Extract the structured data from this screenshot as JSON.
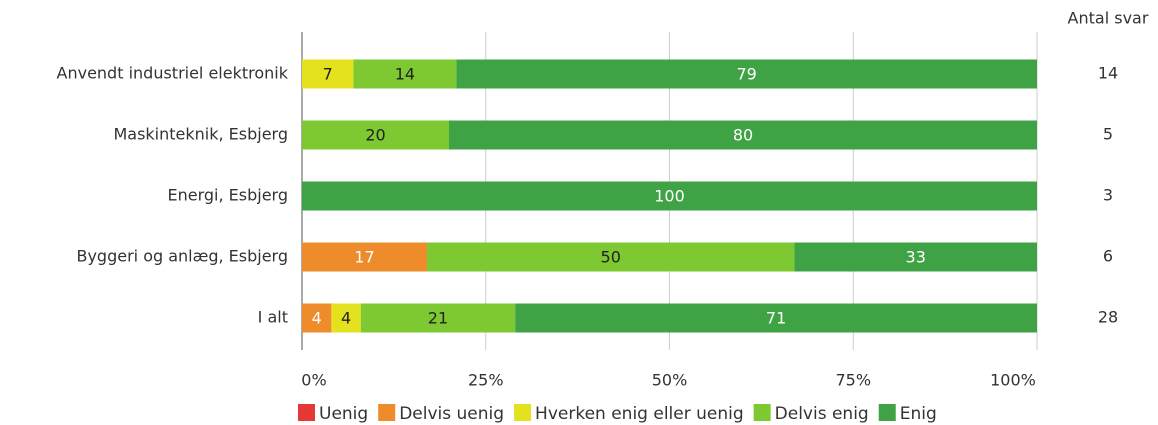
{
  "chart_data": {
    "type": "stacked-bar-horizontal",
    "categories": [
      "Anvendt industriel elektronik",
      "Maskinteknik, Esbjerg",
      "Energi, Esbjerg",
      "Byggeri og anlæg, Esbjerg",
      "I alt"
    ],
    "series": [
      {
        "name": "Uenig",
        "color": "#e53935",
        "label_color": "#ffffff",
        "values": [
          0,
          0,
          0,
          0,
          0
        ]
      },
      {
        "name": "Delvis uenig",
        "color": "#ee8b2a",
        "label_color": "#ffffff",
        "values": [
          0,
          0,
          0,
          17,
          4
        ]
      },
      {
        "name": "Hverken enig eller uenig",
        "color": "#e4e21f",
        "label_color": "#222222",
        "values": [
          7,
          0,
          0,
          0,
          4
        ]
      },
      {
        "name": "Delvis enig",
        "color": "#7ec832",
        "label_color": "#222222",
        "values": [
          14,
          20,
          0,
          50,
          21
        ]
      },
      {
        "name": "Enig",
        "color": "#3fa346",
        "label_color": "#ffffff",
        "values": [
          79,
          80,
          100,
          33,
          71
        ]
      }
    ],
    "count_header": "Antal svar",
    "counts": [
      14,
      5,
      3,
      6,
      28
    ],
    "xlim": [
      0,
      100
    ],
    "xticks": [
      {
        "value": 0,
        "label": "0%"
      },
      {
        "value": 25,
        "label": "25%"
      },
      {
        "value": 50,
        "label": "50%"
      },
      {
        "value": 75,
        "label": "75%"
      },
      {
        "value": 100,
        "label": "100%"
      }
    ],
    "grid": true
  }
}
